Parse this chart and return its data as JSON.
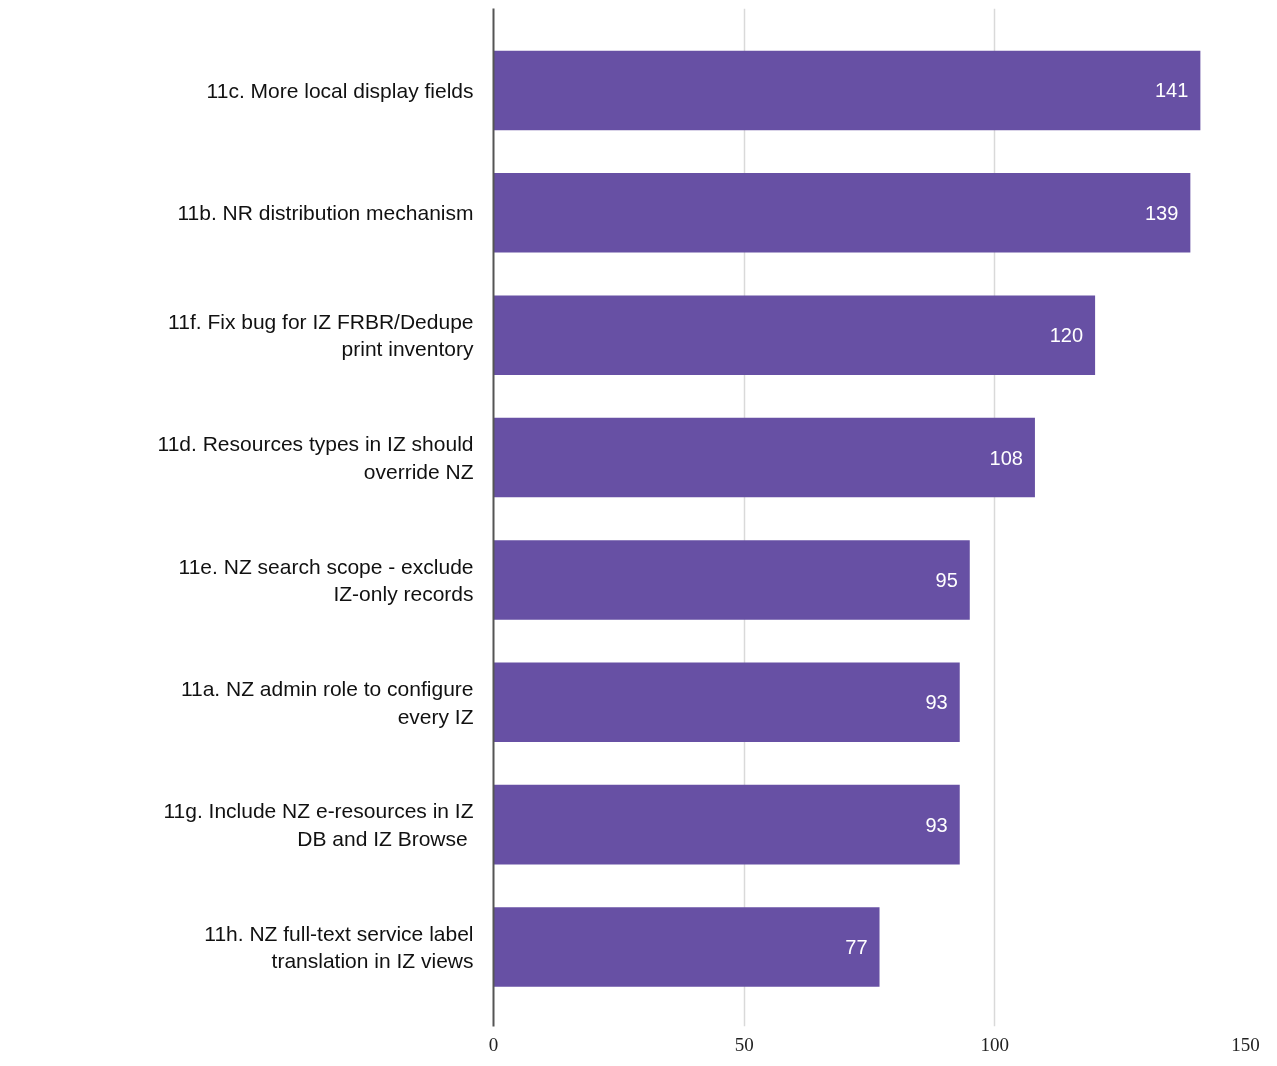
{
  "chart_data": {
    "type": "bar",
    "orientation": "horizontal",
    "categories": [
      "11c. More local display fields",
      "11b. NR distribution mechanism",
      "11f. Fix bug for IZ FRBR/Dedupe print inventory",
      "11d. Resources types in IZ should override NZ",
      "11e. NZ search scope - exclude IZ-only records",
      "11a. NZ admin role to configure every IZ",
      "11g. Include NZ e-resources in IZ DB and  IZ Browse",
      "11h. NZ full-text service label translation in IZ views"
    ],
    "values": [
      141,
      139,
      120,
      108,
      95,
      93,
      93,
      77
    ],
    "color": "#6750a4",
    "xlim": [
      0,
      150
    ],
    "xticks": [
      0,
      50,
      100,
      150
    ],
    "grid": "x",
    "data_labels": true
  }
}
